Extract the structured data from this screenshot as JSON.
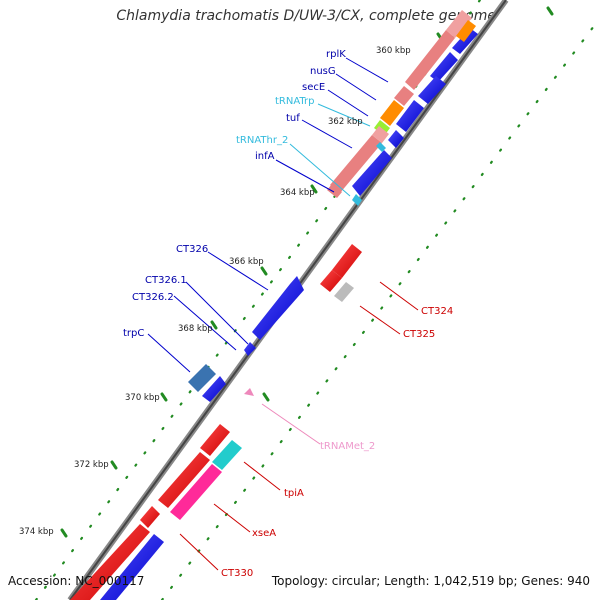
{
  "title": "Chlamydia trachomatis D/UW-3/CX, complete genome",
  "accession": "Accession: NC_000117",
  "topology": "Topology: circular; Length: 1,042,519 bp; Genes: 940",
  "colors": {
    "blue": "#0000e0",
    "red": "#e60000",
    "pink": "#e88080",
    "trna": "#33bbdd",
    "orange": "#ff8c00",
    "lime": "#99ee33",
    "grey": "#bbbbbb",
    "steel": "#3a73b0",
    "cyan": "#22cccc",
    "magenta": "#ff2a99",
    "tick": "#228b22"
  },
  "scale_labels": [
    "360 kbp",
    "362 kbp",
    "364 kbp",
    "366 kbp",
    "368 kbp",
    "370 kbp",
    "372 kbp",
    "374 kbp"
  ],
  "gene_labels": {
    "rplK": "rplK",
    "nusG": "nusG",
    "secE": "secE",
    "tRNATrp": "tRNATrp",
    "tuf": "tuf",
    "tRNAThr_2": "tRNAThr_2",
    "infA": "infA",
    "CT326": "CT326",
    "CT326_1": "CT326.1",
    "CT326_2": "CT326.2",
    "trpC": "trpC",
    "CT324": "CT324",
    "CT325": "CT325",
    "tRNAMet_2": "tRNAMet_2",
    "tpiA": "tpiA",
    "xseA": "xseA",
    "CT330": "CT330"
  }
}
